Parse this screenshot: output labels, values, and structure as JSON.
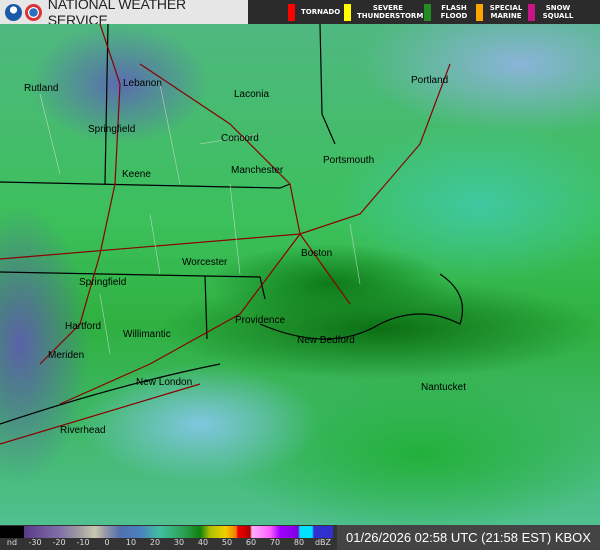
{
  "header": {
    "title": "NATIONAL WEATHER SERVICE",
    "logos": [
      "noaa-logo",
      "nws-logo"
    ]
  },
  "warnings": [
    {
      "label": "TORNADO",
      "color": "#ff0000"
    },
    {
      "label": "SEVERE THUNDERSTORM",
      "color": "#ffff00"
    },
    {
      "label": "FLASH FLOOD",
      "color": "#228b22"
    },
    {
      "label": "SPECIAL MARINE",
      "color": "#ffa500"
    },
    {
      "label": "SNOW SQUALL",
      "color": "#c71585"
    }
  ],
  "cities": [
    "Rutland",
    "Lebanon",
    "Laconia",
    "Portland",
    "Springfield",
    "Concord",
    "Portsmouth",
    "Keene",
    "Manchester",
    "Worcester",
    "Boston",
    "Springfield",
    "Providence",
    "Hartford",
    "Willimantic",
    "New Bedford",
    "Meriden",
    "New London",
    "Nantucket",
    "Riverhead"
  ],
  "legend": {
    "ticks": [
      "nd",
      "-30",
      "-20",
      "-10",
      "0",
      "10",
      "20",
      "30",
      "40",
      "50",
      "60",
      "70",
      "80",
      "dBZ"
    ]
  },
  "timestamp": "01/26/2026 02:58 UTC (21:58 EST) KBOX"
}
